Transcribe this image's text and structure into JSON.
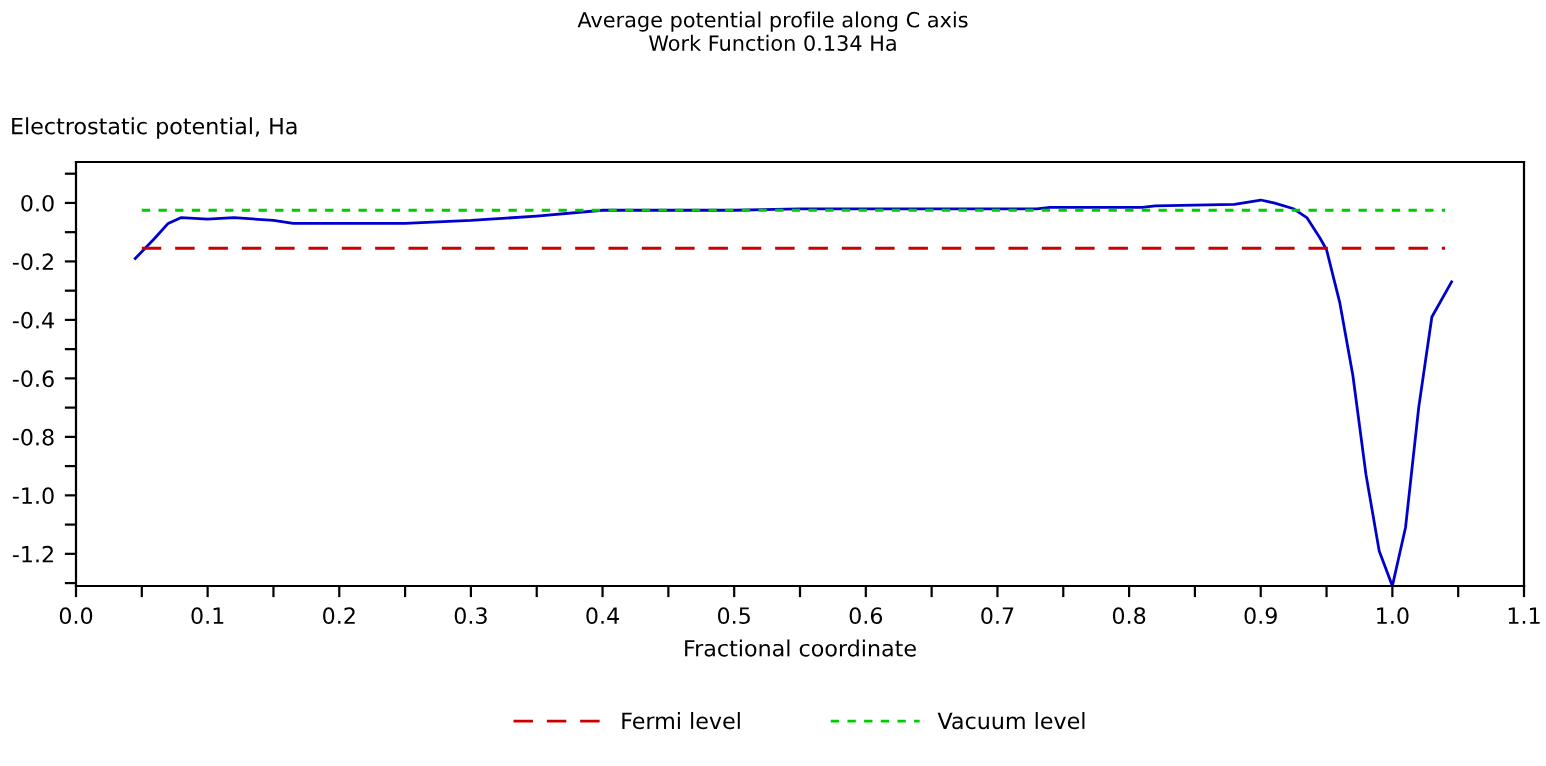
{
  "chart_data": {
    "type": "line",
    "title": "Average potential profile along C axis\nWork Function 0.134 Ha",
    "xlabel": "Fractional coordinate",
    "ylabel": "Electrostatic potential, Ha",
    "series": [
      {
        "color": "#0000cc",
        "line_style": "solid",
        "x": [
          0.045,
          0.06,
          0.07,
          0.08,
          0.1,
          0.12,
          0.15,
          0.165,
          0.25,
          0.3,
          0.35,
          0.4,
          0.5,
          0.55,
          0.73,
          0.74,
          0.81,
          0.82,
          0.88,
          0.9,
          0.91,
          0.925,
          0.935,
          0.945,
          0.95,
          0.96,
          0.97,
          0.98,
          0.99,
          1.0,
          1.01,
          1.02,
          1.03,
          1.045
        ],
        "values": [
          -0.19,
          -0.12,
          -0.07,
          -0.05,
          -0.055,
          -0.05,
          -0.06,
          -0.07,
          -0.07,
          -0.06,
          -0.045,
          -0.025,
          -0.025,
          -0.02,
          -0.02,
          -0.015,
          -0.015,
          -0.01,
          -0.005,
          0.01,
          0.0,
          -0.02,
          -0.05,
          -0.12,
          -0.16,
          -0.34,
          -0.59,
          -0.93,
          -1.19,
          -1.31,
          -1.11,
          -0.7,
          -0.39,
          -0.27
        ]
      },
      {
        "name": "Fermi level",
        "color": "#cc0000",
        "line_style": "dashed",
        "x": [
          0.05,
          1.04
        ],
        "values": [
          -0.155,
          -0.155
        ]
      },
      {
        "name": "Vacuum level",
        "color": "#00cc00",
        "line_style": "dotted",
        "x": [
          0.05,
          1.04
        ],
        "values": [
          -0.025,
          -0.025
        ]
      }
    ],
    "xlim": [
      0.0,
      1.1
    ],
    "ylim": [
      -1.31,
      0.14
    ],
    "xticks": [
      {
        "value": 0.0,
        "label": "0.0"
      },
      {
        "value": 0.05,
        "label": null
      },
      0.1,
      {
        "value": 0.15,
        "label": null
      },
      0.2,
      {
        "value": 0.25,
        "label": null
      },
      0.3,
      {
        "value": 0.35,
        "label": null
      },
      0.4,
      {
        "value": 0.45,
        "label": null
      },
      0.5,
      {
        "value": 0.55,
        "label": null
      },
      0.6,
      {
        "value": 0.65,
        "label": null
      },
      0.7,
      {
        "value": 0.75,
        "label": null
      },
      0.8,
      {
        "value": 0.85,
        "label": null
      },
      0.9,
      {
        "value": 0.95,
        "label": null
      },
      {
        "value": 1.0,
        "label": "1.0"
      },
      {
        "value": 1.05,
        "label": null
      },
      1.1
    ],
    "yticks": [
      {
        "value": -1.3,
        "label": null
      },
      {
        "value": -1.2,
        "label": "-1.2"
      },
      {
        "value": -1.1,
        "label": null
      },
      {
        "value": -1.0,
        "label": "-1.0"
      },
      {
        "value": -0.9,
        "label": null
      },
      {
        "value": -0.8,
        "label": "-0.8"
      },
      {
        "value": -0.7,
        "label": null
      },
      {
        "value": -0.6,
        "label": "-0.6"
      },
      {
        "value": -0.5,
        "label": null
      },
      {
        "value": -0.4,
        "label": "-0.4"
      },
      {
        "value": -0.3,
        "label": null
      },
      {
        "value": -0.2,
        "label": "-0.2"
      },
      {
        "value": -0.1,
        "label": null
      },
      {
        "value": 0.0,
        "label": "0.0"
      },
      {
        "value": 0.1,
        "label": null
      }
    ],
    "grid": false,
    "legend": "bottom"
  }
}
